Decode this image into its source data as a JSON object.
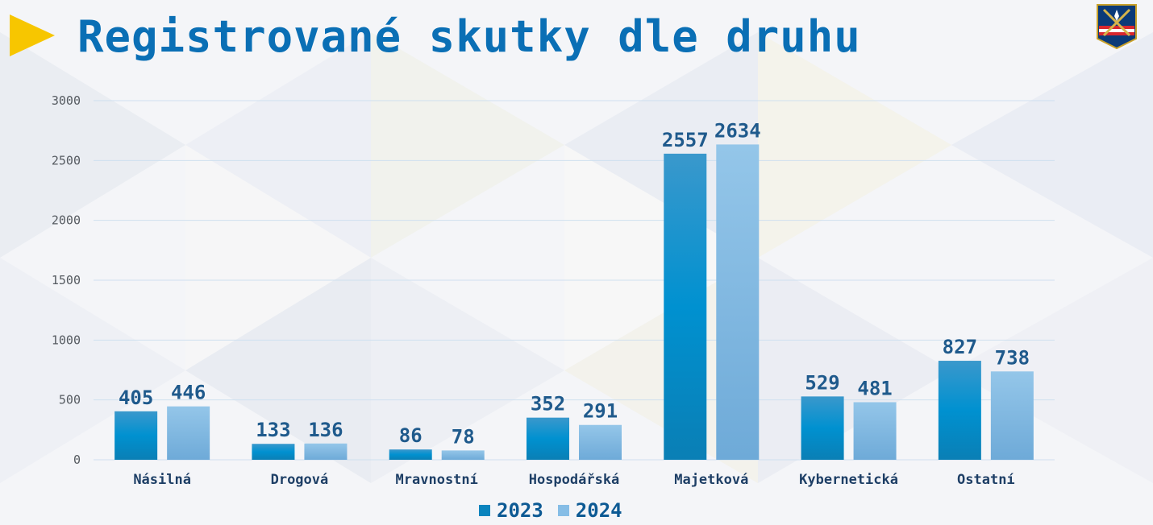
{
  "header": {
    "title": "Registrované skutky dle druhu"
  },
  "colors": {
    "title": "#0a6fb5",
    "accent": "#f7c600",
    "series_2023_top": "#3a98cc",
    "series_2023_mid": "#0091d0",
    "series_2023_bottom": "#0a7fb5",
    "series_2024_top": "#94c6e9",
    "series_2024_bottom": "#6eaad8",
    "value_label": "#1f5a8c",
    "axis_text": "#555a60",
    "grid": "#cfe0ef"
  },
  "chart_data": {
    "type": "bar",
    "categories": [
      "Násilná",
      "Drogová",
      "Mravnostní",
      "Hospodářská",
      "Majetková",
      "Kybernetická",
      "Ostatní"
    ],
    "series": [
      {
        "name": "2023",
        "values": [
          405,
          133,
          86,
          352,
          2557,
          529,
          827
        ]
      },
      {
        "name": "2024",
        "values": [
          446,
          136,
          78,
          291,
          2634,
          481,
          738
        ]
      }
    ],
    "ylim": [
      0,
      3000
    ],
    "yticks": [
      0,
      500,
      1000,
      1500,
      2000,
      2500,
      3000
    ],
    "data_labels": true,
    "grid": true,
    "legend_position": "bottom"
  }
}
